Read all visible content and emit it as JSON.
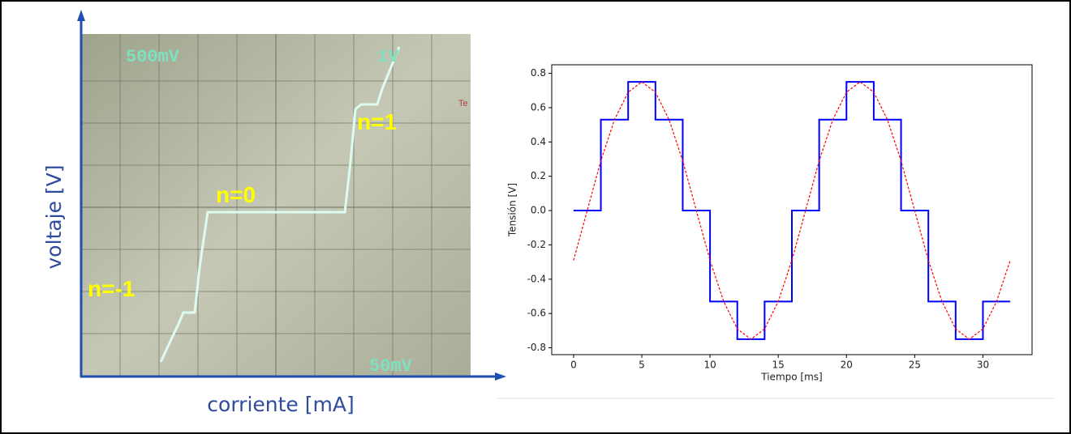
{
  "left_panel": {
    "scope_texts": [
      "500mV",
      "1V",
      "50mV",
      "Te"
    ],
    "step_labels": [
      "n=1",
      "n=0",
      "n=-1"
    ],
    "y_axis_label": "voltaje [V]",
    "x_axis_label": "corriente [mA]"
  },
  "chart_data": {
    "type": "line",
    "xlabel": "Tiempo [ms]",
    "ylabel": "Tensión [V]",
    "xlim": [
      -1.6,
      33.6
    ],
    "ylim": [
      -0.84,
      0.85
    ],
    "xticks": [
      0,
      5,
      10,
      15,
      20,
      25,
      30
    ],
    "yticks": [
      -0.8,
      -0.6,
      -0.4,
      -0.2,
      {
        "value": 0,
        "label": "0.0"
      },
      0.2,
      0.4,
      0.6,
      0.8
    ],
    "grid": false,
    "series": [
      {
        "color": "#0000ff",
        "style": "step",
        "x": [
          0,
          2,
          4,
          6,
          8,
          10,
          12,
          14,
          16,
          18,
          20,
          22,
          24,
          26,
          28,
          30,
          32
        ],
        "values": [
          0,
          0.53,
          0.75,
          0.53,
          0,
          -0.53,
          -0.75,
          -0.53,
          0,
          0.53,
          0.75,
          0.53,
          0,
          -0.53,
          -0.75,
          -0.53,
          -0.53
        ]
      },
      {
        "color": "#ff0000",
        "style": "dashed",
        "x": [
          0,
          1,
          2,
          3,
          4,
          5,
          6,
          7,
          8,
          9,
          10,
          11,
          12,
          13,
          14,
          15,
          16,
          17,
          18,
          19,
          20,
          21,
          22,
          23,
          24,
          25,
          26,
          27,
          28,
          29,
          30,
          31,
          32
        ],
        "values": [
          -0.29,
          0,
          0.29,
          0.53,
          0.69,
          0.75,
          0.69,
          0.53,
          0.29,
          0,
          -0.29,
          -0.53,
          -0.69,
          -0.75,
          -0.69,
          -0.53,
          -0.29,
          0,
          0.29,
          0.53,
          0.69,
          0.75,
          0.69,
          0.53,
          0.29,
          0,
          -0.29,
          -0.53,
          -0.69,
          -0.75,
          -0.69,
          -0.53,
          -0.29
        ]
      }
    ]
  }
}
